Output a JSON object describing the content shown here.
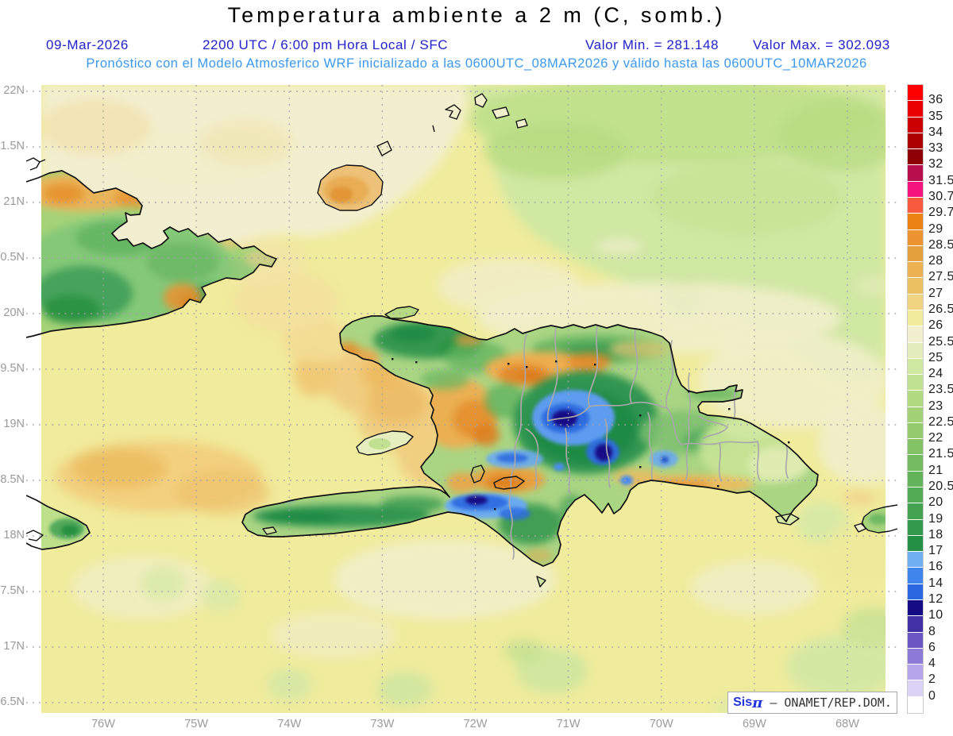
{
  "header": {
    "title": "Temperatura ambiente a 2 m (C, somb.)",
    "date": "09-Mar-2026",
    "time": "2200 UTC / 6:00 pm Hora Local / SFC",
    "valor_min": "Valor Min. = 281.148",
    "valor_max": "Valor Max. = 302.093",
    "model_line": "Pronóstico con el Modelo Atmosferico WRF inicializado a las 0600UTC_08MAR2026 y válido hasta las  0600UTC_10MAR2026"
  },
  "axes": {
    "lat_labels": [
      "22N",
      "1.5N",
      "21N",
      "0.5N",
      "20N",
      "9.5N",
      "19N",
      "8.5N",
      "18N",
      "7.5N",
      "17N",
      "6.5N"
    ],
    "lon_labels": [
      "76W",
      "75W",
      "74W",
      "73W",
      "72W",
      "71W",
      "70W",
      "69W",
      "68W"
    ]
  },
  "colorbar": {
    "labels": [
      "36",
      "35",
      "34",
      "33",
      "32",
      "31.5",
      "30.7",
      "29.7",
      "29",
      "28.5",
      "28",
      "27.5",
      "27",
      "26.5",
      "26",
      "25.5",
      "25",
      "24",
      "23.5",
      "23",
      "22.5",
      "22",
      "21.5",
      "21",
      "20.5",
      "20",
      "19",
      "18",
      "17",
      "16",
      "14",
      "12",
      "10",
      "8",
      "6",
      "4",
      "2",
      "0"
    ],
    "colors": [
      "#ff0000",
      "#ea0000",
      "#cd0000",
      "#ad0000",
      "#8e0005",
      "#b80e4e",
      "#f5147d",
      "#f85a40",
      "#ea8214",
      "#ec9530",
      "#e5a03e",
      "#ecb251",
      "#eac162",
      "#f0d381",
      "#f0ec9c",
      "#f2efcf",
      "#e2edbb",
      "#cfe8a2",
      "#c0e18f",
      "#b1da81",
      "#a3d276",
      "#93cb6d",
      "#83c366",
      "#73bb60",
      "#63b35b",
      "#53ab56",
      "#43a351",
      "#33994c",
      "#239046",
      "#6fb0f2",
      "#3f86ec",
      "#2a68e2",
      "#150b84",
      "#4130a6",
      "#6b57c4",
      "#8d79d7",
      "#b6a6e9",
      "#dbd3f5",
      "#ffffff"
    ]
  },
  "attribution": {
    "brand": "Sis",
    "pi": "π",
    "separator": " – ",
    "org": "ONAMET/REP.DOM."
  },
  "colors": {
    "ocean_base": "#f0ec9c",
    "header_blue": "#2222cc",
    "model_blue": "#3a99ee",
    "axis_gray": "#9a9a9a"
  },
  "chart_data": {
    "type": "heatmap",
    "title": "Temperatura ambiente a 2 m (C, somb.)",
    "units": "C",
    "valid_time": "09-Mar-2026 2200 UTC / 6:00 pm Hora Local / SFC",
    "model": "WRF",
    "init": "0600UTC_08MAR2026",
    "valid_until": "0600UTC_10MAR2026",
    "valor_min": 281.148,
    "valor_max": 302.093,
    "x_ticks": [
      "76W",
      "75W",
      "74W",
      "73W",
      "72W",
      "71W",
      "70W",
      "69W",
      "68W"
    ],
    "y_ticks": [
      "22N",
      "1.5N",
      "21N",
      "0.5N",
      "20N",
      "9.5N",
      "19N",
      "8.5N",
      "18N",
      "7.5N",
      "17N",
      "6.5N"
    ],
    "contour_levels_C": [
      0,
      2,
      4,
      6,
      8,
      10,
      12,
      14,
      16,
      17,
      18,
      19,
      20,
      20.5,
      21,
      21.5,
      22,
      22.5,
      23,
      23.5,
      24,
      25,
      25.5,
      26,
      26.5,
      27,
      27.5,
      28,
      28.5,
      29,
      29.7,
      30.7,
      31.5,
      32,
      33,
      34,
      35,
      36
    ],
    "legend_position": "right"
  }
}
